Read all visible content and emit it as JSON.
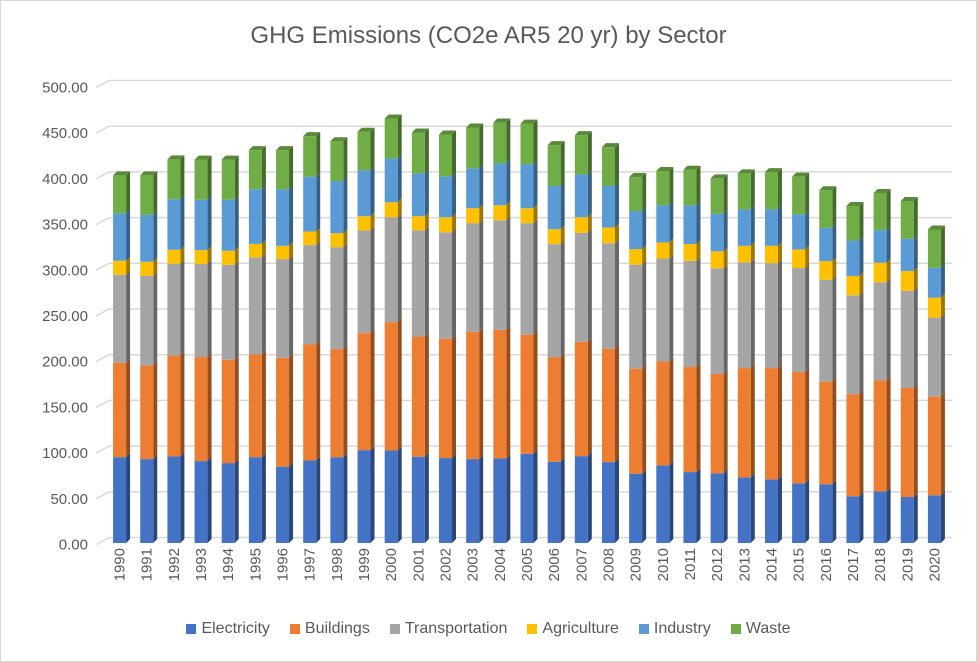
{
  "chart_data": {
    "type": "bar",
    "stacked": true,
    "style": "3d-column",
    "title": "GHG Emissions (CO2e AR5 20 yr) by Sector",
    "xlabel": "",
    "ylabel": "",
    "ylim": [
      0,
      500
    ],
    "yticks": [
      "0.00",
      "50.00",
      "100.00",
      "150.00",
      "200.00",
      "250.00",
      "300.00",
      "350.00",
      "400.00",
      "450.00",
      "500.00"
    ],
    "grid": true,
    "legend_position": "bottom",
    "categories": [
      "1990",
      "1991",
      "1992",
      "1993",
      "1994",
      "1995",
      "1996",
      "1997",
      "1998",
      "1999",
      "2000",
      "2001",
      "2002",
      "2003",
      "2004",
      "2005",
      "2006",
      "2007",
      "2008",
      "2009",
      "2010",
      "2011",
      "2012",
      "2013",
      "2014",
      "2015",
      "2016",
      "2017",
      "2018",
      "2019",
      "2020"
    ],
    "series": [
      {
        "name": "Electricity",
        "color": "#4472c4",
        "values": [
          93.9,
          91.8,
          94.7,
          89.6,
          87.4,
          93.9,
          83.5,
          90.3,
          93.9,
          101.6,
          101.2,
          94.4,
          92.9,
          91.8,
          92.5,
          97.6,
          88.9,
          95.0,
          88.5,
          75.8,
          84.9,
          77.6,
          76.2,
          71.8,
          69.6,
          65.2,
          64.2,
          51.1,
          56.5,
          50.3,
          52.2
        ]
      },
      {
        "name": "Buildings",
        "color": "#ed7d31",
        "values": [
          103.3,
          102.5,
          110.5,
          113.8,
          113.1,
          112.4,
          119.2,
          126.9,
          118.2,
          128.0,
          140.4,
          131.5,
          130.5,
          139.2,
          140.7,
          130.1,
          114.1,
          125.1,
          124.0,
          114.9,
          113.7,
          114.9,
          108.7,
          119.6,
          121.8,
          121.8,
          112.3,
          111.5,
          121.4,
          119.3,
          107.9
        ]
      },
      {
        "name": "Transportation",
        "color": "#a5a5a5",
        "values": [
          96.3,
          98.1,
          100.3,
          101.8,
          103.9,
          106.2,
          107.9,
          108.7,
          111.6,
          112.4,
          114.8,
          116.3,
          116.6,
          118.9,
          119.9,
          122.2,
          124.0,
          119.2,
          115.5,
          113.8,
          112.7,
          116.3,
          115.6,
          115.6,
          114.8,
          113.8,
          111.5,
          108.4,
          107.3,
          106.4,
          86.5
        ]
      },
      {
        "name": "Agriculture",
        "color": "#ffc000",
        "values": [
          15.3,
          15.3,
          15.3,
          15.2,
          15.3,
          14.8,
          14.5,
          14.9,
          15.3,
          15.5,
          16.4,
          15.3,
          16.4,
          16.3,
          16.4,
          16.3,
          16.3,
          17.1,
          17.2,
          17.0,
          17.5,
          18.2,
          18.6,
          18.1,
          18.9,
          20.4,
          20.4,
          21.1,
          21.4,
          21.5,
          21.8
        ]
      },
      {
        "name": "Industry",
        "color": "#5b9bd5",
        "values": [
          52.0,
          51.3,
          55.3,
          55.1,
          55.8,
          59.7,
          61.9,
          60.0,
          57.1,
          50.2,
          48.0,
          46.9,
          44.7,
          43.7,
          45.8,
          48.0,
          47.3,
          46.9,
          45.4,
          41.7,
          40.7,
          42.5,
          41.1,
          40.0,
          40.0,
          38.5,
          36.6,
          38.8,
          35.6,
          35.3,
          32.7
        ]
      },
      {
        "name": "Waste",
        "color": "#70ad47",
        "values": [
          41.4,
          43.2,
          43.6,
          44.0,
          44.0,
          42.8,
          42.8,
          44.3,
          43.5,
          42.3,
          43.6,
          44.7,
          45.8,
          44.7,
          44.7,
          44.7,
          44.7,
          42.9,
          42.5,
          37.2,
          37.5,
          38.9,
          38.8,
          39.3,
          40.7,
          41.1,
          40.9,
          37.8,
          40.8,
          41.4,
          41.9
        ]
      }
    ]
  }
}
